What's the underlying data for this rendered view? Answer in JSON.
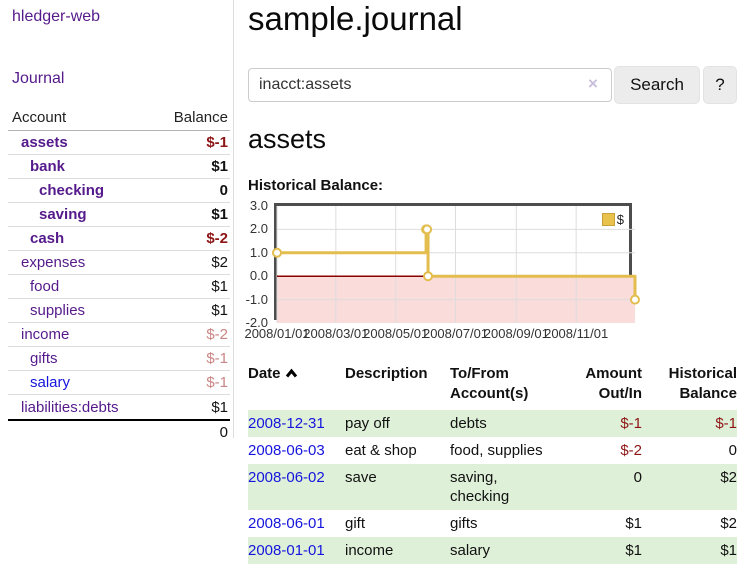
{
  "brand": "hledger-web",
  "nav": {
    "journal_label": "Journal"
  },
  "sidebar": {
    "header": {
      "account": "Account",
      "balance": "Balance"
    },
    "rows": [
      {
        "name": "assets",
        "balance": "$-1"
      },
      {
        "name": "bank",
        "balance": "$1"
      },
      {
        "name": "checking",
        "balance": "0"
      },
      {
        "name": "saving",
        "balance": "$1"
      },
      {
        "name": "cash",
        "balance": "$-2"
      },
      {
        "name": "expenses",
        "balance": "$2"
      },
      {
        "name": "food",
        "balance": "$1"
      },
      {
        "name": "supplies",
        "balance": "$1"
      },
      {
        "name": "income",
        "balance": "$-2"
      },
      {
        "name": "gifts",
        "balance": "$-1"
      },
      {
        "name": "salary",
        "balance": "$-1"
      },
      {
        "name": "liabilities:debts",
        "balance": "$1"
      }
    ],
    "total": "0"
  },
  "main": {
    "title": "sample.journal",
    "search": {
      "value": "inacct:assets",
      "clear_icon": "×",
      "search_button": "Search",
      "help_button": "?"
    },
    "account_heading": "assets",
    "chart_title": "Historical Balance:"
  },
  "chart_data": {
    "type": "line",
    "style": "step-after",
    "title": "Historical Balance",
    "legend": "$",
    "legend_position": "top-right",
    "grid": true,
    "x_range": [
      "2008-01-01",
      "2008-12-31"
    ],
    "ylim": [
      -2.0,
      3.0
    ],
    "y_ticks": [
      3.0,
      2.0,
      1.0,
      0.0,
      -1.0,
      -2.0
    ],
    "y_tick_labels": [
      "3.0",
      "2.0",
      "1.0",
      "0.0",
      "-1.0",
      "-2.0"
    ],
    "x_ticks": [
      "2008-01-01",
      "2008-03-01",
      "2008-05-01",
      "2008-07-01",
      "2008-09-01",
      "2008-11-01"
    ],
    "x_tick_labels": [
      "2008/01/01",
      "2008/03/01",
      "2008/05/01",
      "2008/07/01",
      "2008/09/01",
      "2008/11/01"
    ],
    "series": [
      {
        "name": "$",
        "points": [
          [
            "2008-01-01",
            1
          ],
          [
            "2008-06-01",
            2
          ],
          [
            "2008-06-02",
            2
          ],
          [
            "2008-06-03",
            0
          ],
          [
            "2008-12-31",
            -1
          ]
        ]
      }
    ],
    "colors": {
      "line": "#e3bd4e",
      "marker_fill": "#ffffff",
      "negative_region": "#fadcdb",
      "zero_line": "#8b0000",
      "grid": "#dddddd",
      "border": "#4d4d4d"
    }
  },
  "register": {
    "columns": [
      "Date",
      "Description",
      "To/From\nAccount(s)",
      "Amount\nOut/In",
      "Historical\nBalance"
    ],
    "rows": [
      {
        "date": "2008-12-31",
        "description": "pay off",
        "accounts": "debts",
        "amount": "$-1",
        "balance": "$-1"
      },
      {
        "date": "2008-06-03",
        "description": "eat & shop",
        "accounts": "food, supplies",
        "amount": "$-2",
        "balance": "0"
      },
      {
        "date": "2008-06-02",
        "description": "save",
        "accounts": "saving,\nchecking",
        "amount": "0",
        "balance": "$2"
      },
      {
        "date": "2008-06-01",
        "description": "gift",
        "accounts": "gifts",
        "amount": "$1",
        "balance": "$2"
      },
      {
        "date": "2008-01-01",
        "description": "income",
        "accounts": "salary",
        "amount": "$1",
        "balance": "$1"
      }
    ]
  },
  "colors": {
    "link_purple": "#551a8b",
    "link_blue": "#1515dd",
    "negative_strong": "#8e1515",
    "negative_soft": "#c98584",
    "row_green": "#dff0d8"
  }
}
